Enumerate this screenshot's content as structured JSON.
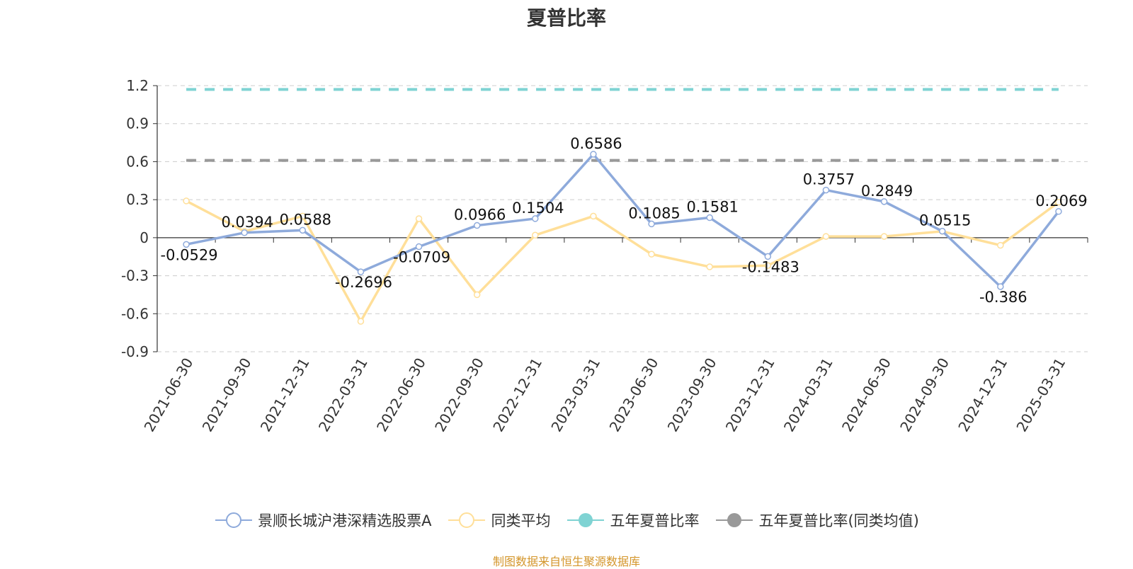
{
  "chart_data": {
    "type": "line",
    "title": "夏普比率",
    "categories": [
      "2021-06-30",
      "2021-09-30",
      "2021-12-31",
      "2022-03-31",
      "2022-06-30",
      "2022-09-30",
      "2022-12-31",
      "2023-03-31",
      "2023-06-30",
      "2023-09-30",
      "2023-12-31",
      "2024-03-31",
      "2024-06-30",
      "2024-09-30",
      "2024-12-31",
      "2025-03-31"
    ],
    "series": [
      {
        "name": "景顺长城沪港深精选股票A",
        "color": "#8eaadb",
        "values": [
          -0.0529,
          0.0394,
          0.0588,
          -0.2696,
          -0.0709,
          0.0966,
          0.1504,
          0.6586,
          0.1085,
          0.1581,
          -0.1483,
          0.3757,
          0.2849,
          0.0515,
          -0.386,
          0.2069
        ],
        "labels": [
          "-0.0529",
          "0.0394",
          "0.0588",
          "-0.2696",
          "-0.0709",
          "0.0966",
          "0.1504",
          "0.6586",
          "0.1085",
          "0.1581",
          "-0.1483",
          "0.3757",
          "0.2849",
          "0.0515",
          "-0.386",
          "0.2069"
        ]
      },
      {
        "name": "同类平均",
        "color": "#ffdf99",
        "values": [
          0.29,
          0.05,
          0.17,
          -0.66,
          0.15,
          -0.45,
          0.02,
          0.17,
          -0.13,
          -0.23,
          -0.22,
          0.01,
          0.01,
          0.05,
          -0.06,
          0.28
        ]
      },
      {
        "name": "五年夏普比率",
        "color": "#7fd3d3",
        "constant": 1.17
      },
      {
        "name": "五年夏普比率(同类均值)",
        "color": "#999999",
        "constant": 0.61
      }
    ],
    "yticks": [
      "1.2",
      "0.9",
      "0.6",
      "0.3",
      "0",
      "-0.3",
      "-0.6",
      "-0.9"
    ],
    "ylim": [
      -0.9,
      1.2
    ],
    "grid": true,
    "legend_position": "bottom"
  },
  "footer": {
    "source": "制图数据来自恒生聚源数据库"
  }
}
